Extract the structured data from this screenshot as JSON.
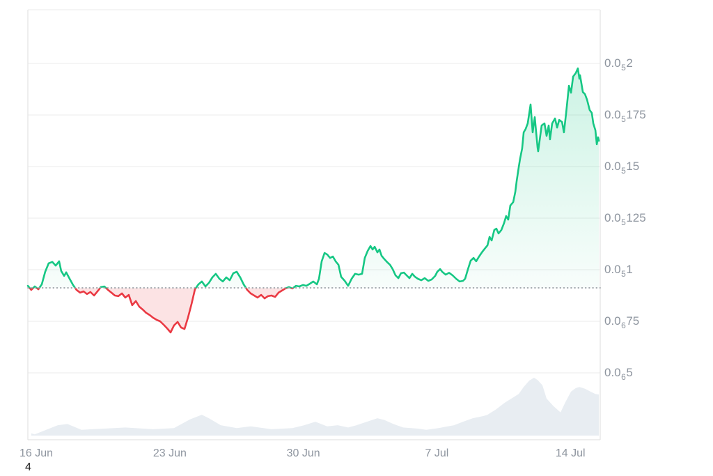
{
  "chart_data": {
    "type": "line",
    "description_of_visible_content": "price line chart with volume silhouette",
    "x_axis": {
      "domain_days": [
        0,
        30
      ],
      "ticks": [
        {
          "t": 0.44,
          "label": "16 Jun"
        },
        {
          "t": 7.44,
          "label": "23 Jun"
        },
        {
          "t": 14.44,
          "label": "30 Jun"
        },
        {
          "t": 21.44,
          "label": "7 Jul"
        },
        {
          "t": 28.44,
          "label": "14 Jul"
        }
      ]
    },
    "y_axis": {
      "unit": "1e-6",
      "gridline_values": [
        2.25,
        2.0,
        1.75,
        1.5,
        1.25,
        1.0,
        0.75,
        0.5
      ],
      "ticks": [
        {
          "value": 2.0,
          "prefix": "0.0",
          "subscript": "5",
          "digits": "2"
        },
        {
          "value": 1.75,
          "prefix": "0.0",
          "subscript": "5",
          "digits": "175"
        },
        {
          "value": 1.5,
          "prefix": "0.0",
          "subscript": "5",
          "digits": "15"
        },
        {
          "value": 1.25,
          "prefix": "0.0",
          "subscript": "5",
          "digits": "125"
        },
        {
          "value": 1.0,
          "prefix": "0.0",
          "subscript": "5",
          "digits": "1"
        },
        {
          "value": 0.75,
          "prefix": "0.0",
          "subscript": "6",
          "digits": "75"
        },
        {
          "value": 0.5,
          "prefix": "0.0",
          "subscript": "6",
          "digits": "5"
        }
      ]
    },
    "baseline_value": 0.912,
    "price_series": {
      "name": "price",
      "points": [
        [
          0,
          0.922
        ],
        [
          0.18,
          0.902
        ],
        [
          0.36,
          0.919
        ],
        [
          0.55,
          0.905
        ],
        [
          0.73,
          0.929
        ],
        [
          0.91,
          0.99
        ],
        [
          1.09,
          1.031
        ],
        [
          1.28,
          1.038
        ],
        [
          1.46,
          1.02
        ],
        [
          1.64,
          1.041
        ],
        [
          1.75,
          0.994
        ],
        [
          1.9,
          0.97
        ],
        [
          2.01,
          0.987
        ],
        [
          2.19,
          0.956
        ],
        [
          2.37,
          0.926
        ],
        [
          2.55,
          0.902
        ],
        [
          2.74,
          0.889
        ],
        [
          2.92,
          0.895
        ],
        [
          3.1,
          0.882
        ],
        [
          3.28,
          0.892
        ],
        [
          3.47,
          0.875
        ],
        [
          3.65,
          0.895
        ],
        [
          3.83,
          0.916
        ],
        [
          4.01,
          0.919
        ],
        [
          4.2,
          0.902
        ],
        [
          4.38,
          0.889
        ],
        [
          4.56,
          0.875
        ],
        [
          4.74,
          0.872
        ],
        [
          4.93,
          0.885
        ],
        [
          5.11,
          0.865
        ],
        [
          5.29,
          0.878
        ],
        [
          5.47,
          0.828
        ],
        [
          5.66,
          0.848
        ],
        [
          5.84,
          0.821
        ],
        [
          6.02,
          0.807
        ],
        [
          6.2,
          0.791
        ],
        [
          6.39,
          0.78
        ],
        [
          6.57,
          0.767
        ],
        [
          6.75,
          0.757
        ],
        [
          6.93,
          0.75
        ],
        [
          7.12,
          0.733
        ],
        [
          7.3,
          0.716
        ],
        [
          7.48,
          0.696
        ],
        [
          7.66,
          0.73
        ],
        [
          7.85,
          0.747
        ],
        [
          8.03,
          0.72
        ],
        [
          8.21,
          0.713
        ],
        [
          8.39,
          0.767
        ],
        [
          8.58,
          0.834
        ],
        [
          8.76,
          0.905
        ],
        [
          8.94,
          0.929
        ],
        [
          9.12,
          0.943
        ],
        [
          9.31,
          0.919
        ],
        [
          9.49,
          0.936
        ],
        [
          9.67,
          0.963
        ],
        [
          9.85,
          0.98
        ],
        [
          10.04,
          0.956
        ],
        [
          10.22,
          0.943
        ],
        [
          10.4,
          0.963
        ],
        [
          10.58,
          0.949
        ],
        [
          10.77,
          0.983
        ],
        [
          10.95,
          0.99
        ],
        [
          11.13,
          0.963
        ],
        [
          11.31,
          0.929
        ],
        [
          11.5,
          0.902
        ],
        [
          11.68,
          0.885
        ],
        [
          11.86,
          0.875
        ],
        [
          12.04,
          0.865
        ],
        [
          12.23,
          0.878
        ],
        [
          12.41,
          0.861
        ],
        [
          12.59,
          0.872
        ],
        [
          12.77,
          0.875
        ],
        [
          12.96,
          0.868
        ],
        [
          13.14,
          0.889
        ],
        [
          13.32,
          0.899
        ],
        [
          13.5,
          0.909
        ],
        [
          13.69,
          0.916
        ],
        [
          13.87,
          0.909
        ],
        [
          14.05,
          0.922
        ],
        [
          14.23,
          0.919
        ],
        [
          14.42,
          0.926
        ],
        [
          14.6,
          0.922
        ],
        [
          14.78,
          0.932
        ],
        [
          14.96,
          0.943
        ],
        [
          15.15,
          0.929
        ],
        [
          15.26,
          0.956
        ],
        [
          15.4,
          1.041
        ],
        [
          15.55,
          1.081
        ],
        [
          15.69,
          1.074
        ],
        [
          15.84,
          1.057
        ],
        [
          15.99,
          1.064
        ],
        [
          16.13,
          1.041
        ],
        [
          16.28,
          1.024
        ],
        [
          16.42,
          0.966
        ],
        [
          16.61,
          0.946
        ],
        [
          16.79,
          0.922
        ],
        [
          16.97,
          0.956
        ],
        [
          17.15,
          0.98
        ],
        [
          17.34,
          0.976
        ],
        [
          17.52,
          0.98
        ],
        [
          17.66,
          1.057
        ],
        [
          17.81,
          1.091
        ],
        [
          17.96,
          1.115
        ],
        [
          18.07,
          1.098
        ],
        [
          18.18,
          1.111
        ],
        [
          18.32,
          1.084
        ],
        [
          18.43,
          1.098
        ],
        [
          18.54,
          1.068
        ],
        [
          18.69,
          1.051
        ],
        [
          18.83,
          1.037
        ],
        [
          18.98,
          1.024
        ],
        [
          19.12,
          1.003
        ],
        [
          19.27,
          0.973
        ],
        [
          19.42,
          0.959
        ],
        [
          19.56,
          0.983
        ],
        [
          19.71,
          0.986
        ],
        [
          19.85,
          0.973
        ],
        [
          20,
          0.959
        ],
        [
          20.15,
          0.98
        ],
        [
          20.29,
          0.966
        ],
        [
          20.44,
          0.956
        ],
        [
          20.62,
          0.949
        ],
        [
          20.8,
          0.959
        ],
        [
          20.99,
          0.946
        ],
        [
          21.17,
          0.953
        ],
        [
          21.35,
          0.97
        ],
        [
          21.46,
          0.99
        ],
        [
          21.61,
          1.003
        ],
        [
          21.72,
          0.99
        ],
        [
          21.9,
          0.976
        ],
        [
          22.08,
          0.985
        ],
        [
          22.26,
          0.973
        ],
        [
          22.45,
          0.956
        ],
        [
          22.63,
          0.943
        ],
        [
          22.81,
          0.946
        ],
        [
          22.92,
          0.956
        ],
        [
          23.07,
          1.003
        ],
        [
          23.21,
          1.044
        ],
        [
          23.36,
          1.057
        ],
        [
          23.5,
          1.041
        ],
        [
          23.65,
          1.064
        ],
        [
          23.8,
          1.084
        ],
        [
          23.94,
          1.101
        ],
        [
          24.09,
          1.118
        ],
        [
          24.2,
          1.159
        ],
        [
          24.31,
          1.142
        ],
        [
          24.45,
          1.193
        ],
        [
          24.56,
          1.199
        ],
        [
          24.67,
          1.176
        ],
        [
          24.82,
          1.193
        ],
        [
          24.96,
          1.226
        ],
        [
          25.07,
          1.26
        ],
        [
          25.18,
          1.243
        ],
        [
          25.29,
          1.311
        ],
        [
          25.44,
          1.328
        ],
        [
          25.55,
          1.378
        ],
        [
          25.62,
          1.429
        ],
        [
          25.73,
          1.497
        ],
        [
          25.8,
          1.537
        ],
        [
          25.91,
          1.588
        ],
        [
          25.99,
          1.666
        ],
        [
          26.09,
          1.682
        ],
        [
          26.2,
          1.709
        ],
        [
          26.35,
          1.801
        ],
        [
          26.46,
          1.666
        ],
        [
          26.57,
          1.74
        ],
        [
          26.72,
          1.591
        ],
        [
          26.75,
          1.574
        ],
        [
          26.93,
          1.699
        ],
        [
          27.08,
          1.709
        ],
        [
          27.19,
          1.649
        ],
        [
          27.3,
          1.699
        ],
        [
          27.37,
          1.632
        ],
        [
          27.48,
          1.709
        ],
        [
          27.63,
          1.733
        ],
        [
          27.74,
          1.689
        ],
        [
          27.85,
          1.726
        ],
        [
          28,
          1.716
        ],
        [
          28.1,
          1.666
        ],
        [
          28.21,
          1.757
        ],
        [
          28.36,
          1.892
        ],
        [
          28.47,
          1.858
        ],
        [
          28.58,
          1.936
        ],
        [
          28.72,
          1.953
        ],
        [
          28.83,
          1.976
        ],
        [
          28.91,
          1.926
        ],
        [
          28.94,
          1.943
        ],
        [
          29.09,
          1.861
        ],
        [
          29.2,
          1.851
        ],
        [
          29.31,
          1.824
        ],
        [
          29.45,
          1.774
        ],
        [
          29.56,
          1.76
        ],
        [
          29.64,
          1.709
        ],
        [
          29.75,
          1.676
        ],
        [
          29.82,
          1.608
        ],
        [
          29.89,
          1.642
        ],
        [
          29.93,
          1.625
        ]
      ]
    },
    "volume_series": {
      "name": "volume",
      "scale": "relative 0-1 (no axis labels shown)",
      "points": [
        [
          0.18,
          0.04
        ],
        [
          0.36,
          0.02
        ],
        [
          1.57,
          0.18
        ],
        [
          2.08,
          0.2
        ],
        [
          2.81,
          0.1
        ],
        [
          4.01,
          0.12
        ],
        [
          5.11,
          0.14
        ],
        [
          6.57,
          0.11
        ],
        [
          7.66,
          0.13
        ],
        [
          8.5,
          0.28
        ],
        [
          9.12,
          0.36
        ],
        [
          9.49,
          0.3
        ],
        [
          10.11,
          0.18
        ],
        [
          10.95,
          0.13
        ],
        [
          11.68,
          0.16
        ],
        [
          12.77,
          0.11
        ],
        [
          13.87,
          0.13
        ],
        [
          14.49,
          0.18
        ],
        [
          15.07,
          0.24
        ],
        [
          15.69,
          0.16
        ],
        [
          16.24,
          0.18
        ],
        [
          16.79,
          0.14
        ],
        [
          17.23,
          0.18
        ],
        [
          17.77,
          0.24
        ],
        [
          18.32,
          0.3
        ],
        [
          18.69,
          0.27
        ],
        [
          19.16,
          0.2
        ],
        [
          19.67,
          0.14
        ],
        [
          20.44,
          0.12
        ],
        [
          20.88,
          0.1
        ],
        [
          21.53,
          0.13
        ],
        [
          22.34,
          0.18
        ],
        [
          22.81,
          0.24
        ],
        [
          23.32,
          0.3
        ],
        [
          23.91,
          0.34
        ],
        [
          24.09,
          0.36
        ],
        [
          24.53,
          0.45
        ],
        [
          25,
          0.57
        ],
        [
          25.44,
          0.66
        ],
        [
          25.73,
          0.72
        ],
        [
          25.99,
          0.84
        ],
        [
          26.28,
          0.95
        ],
        [
          26.53,
          1
        ],
        [
          26.72,
          0.96
        ],
        [
          26.97,
          0.87
        ],
        [
          27.19,
          0.64
        ],
        [
          27.55,
          0.51
        ],
        [
          27.92,
          0.4
        ],
        [
          28.18,
          0.58
        ],
        [
          28.47,
          0.76
        ],
        [
          28.72,
          0.82
        ],
        [
          28.91,
          0.84
        ],
        [
          29.2,
          0.81
        ],
        [
          29.49,
          0.76
        ],
        [
          29.74,
          0.72
        ],
        [
          29.93,
          0.71
        ]
      ]
    },
    "colors": {
      "up": "#16c784",
      "down": "#ea3943",
      "up_fill_max": "rgba(22,199,132,0.22)",
      "up_fill_min": "rgba(22,199,132,0.03)",
      "down_fill": "rgba(234,57,67,0.14)",
      "volume_fill": "#e8edf2",
      "grid": "#efefef",
      "spine": "#e3e3e3",
      "baseline_dotted": "#9aa0a6",
      "axis_label": "#8e959f"
    },
    "stray_text": "4"
  }
}
